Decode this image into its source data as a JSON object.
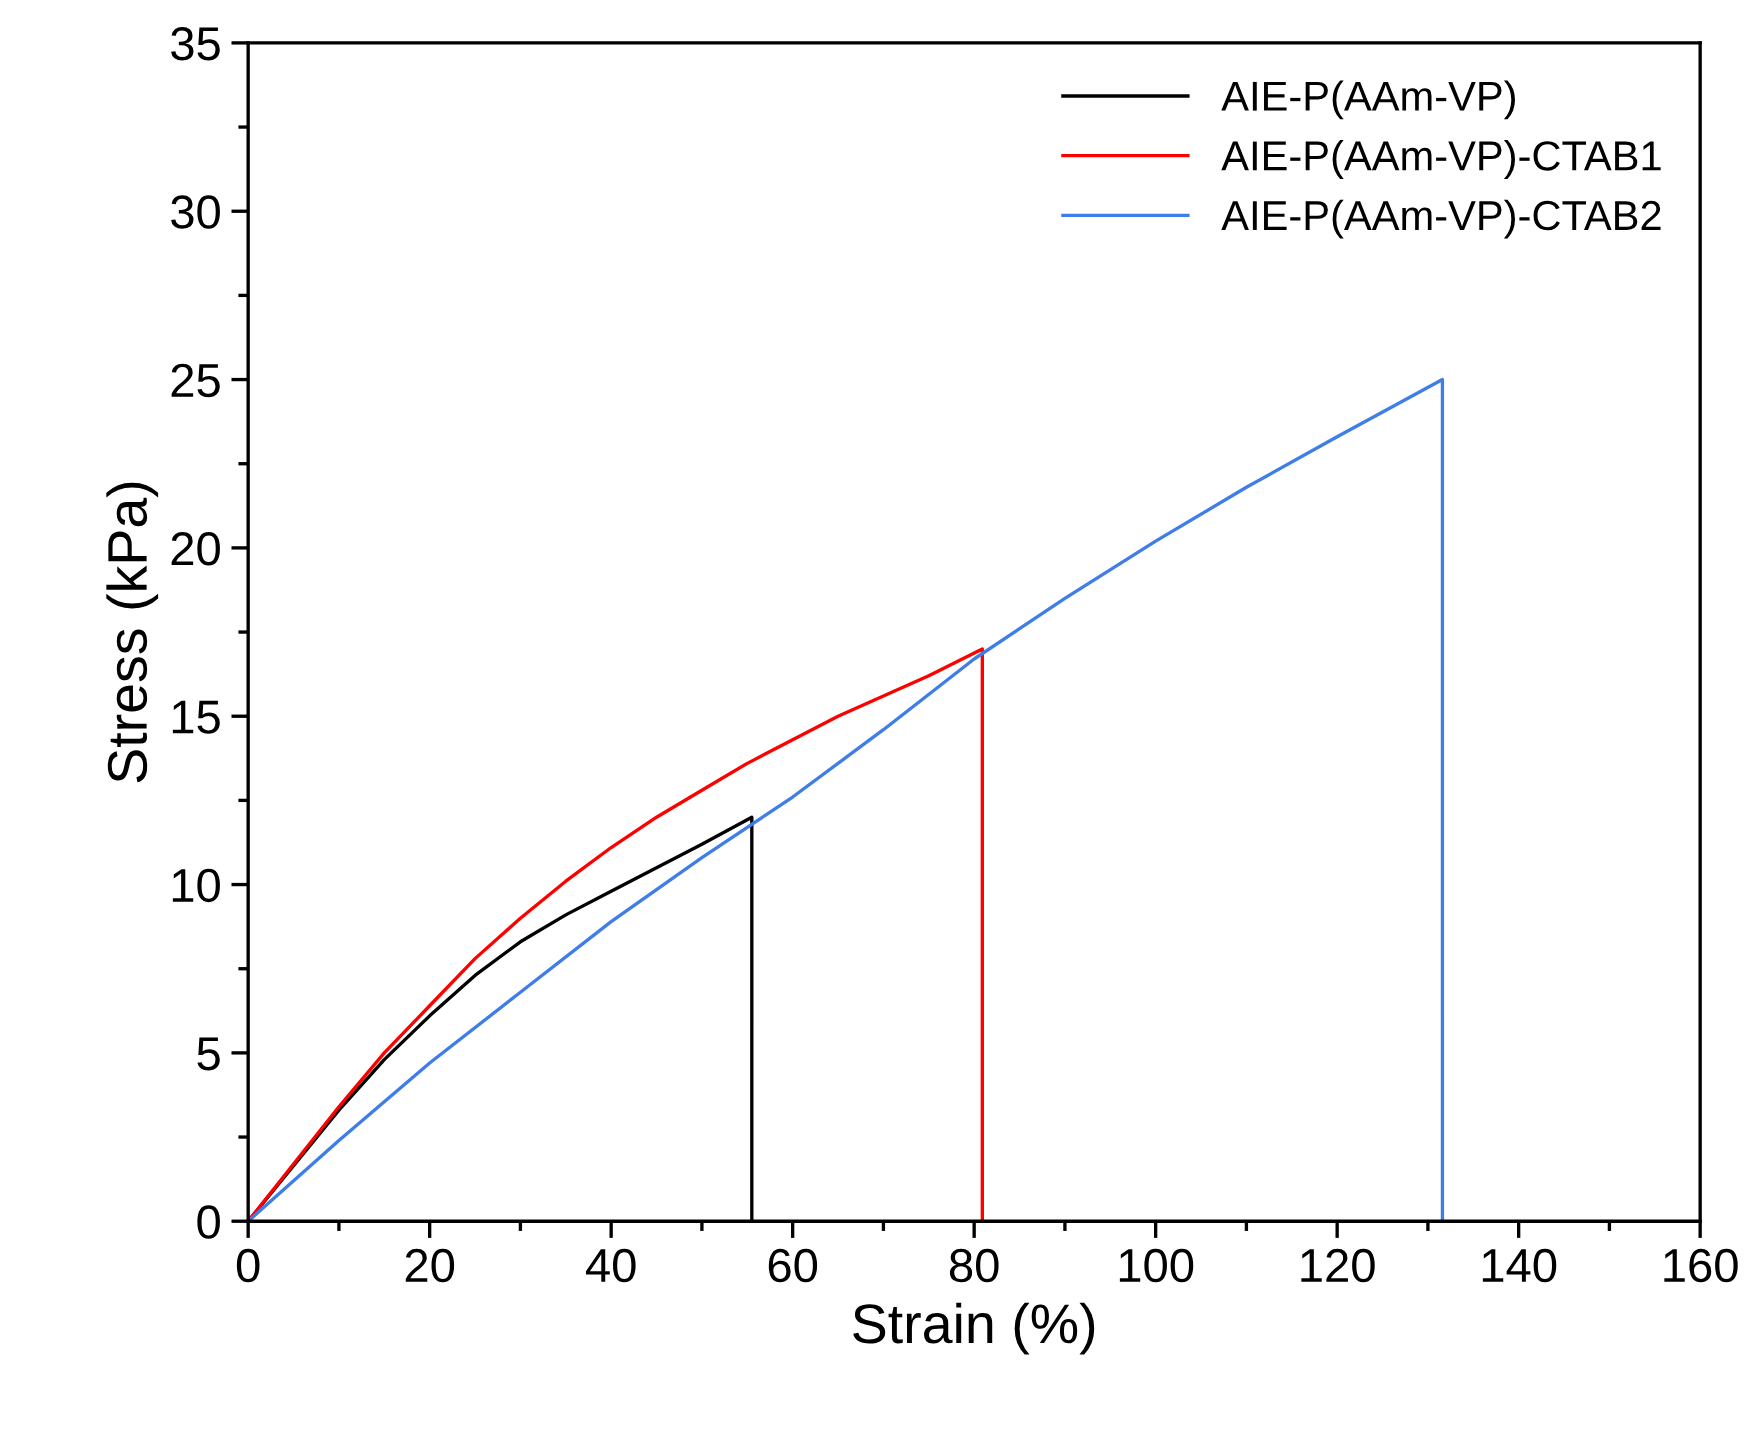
{
  "chart_data": {
    "type": "line",
    "xlabel": "Strain (%)",
    "ylabel": "Stress (kPa)",
    "xlim": [
      0,
      160
    ],
    "ylim": [
      0,
      35
    ],
    "xticks": [
      0,
      20,
      40,
      60,
      80,
      100,
      120,
      140,
      160
    ],
    "yticks": [
      0,
      5,
      10,
      15,
      20,
      25,
      30,
      35
    ],
    "legend": "top right",
    "grid": false,
    "marker": "none",
    "line_style": "solid",
    "series": [
      {
        "name": "AIE-P(AAm-VP)",
        "color": "#000000",
        "x": [
          0,
          10,
          15,
          20,
          25,
          30,
          35,
          40,
          45,
          50,
          55.5,
          55.5
        ],
        "values": [
          0,
          3.3,
          4.8,
          6.1,
          7.3,
          8.3,
          9.1,
          9.8,
          10.5,
          11.2,
          12.0,
          0
        ]
      },
      {
        "name": "AIE-P(AAm-VP)-CTAB1",
        "color": "#ff0000",
        "x": [
          0,
          5,
          10,
          15,
          20,
          25,
          30,
          35,
          40,
          45,
          50,
          55,
          60,
          65,
          70,
          75,
          80.9,
          80.9
        ],
        "values": [
          0,
          1.7,
          3.4,
          5.0,
          6.4,
          7.8,
          9.0,
          10.1,
          11.1,
          12.0,
          12.8,
          13.6,
          14.3,
          15.0,
          15.6,
          16.2,
          17.0,
          0
        ]
      },
      {
        "name": "AIE-P(AAm-VP)-CTAB2",
        "color": "#3f7ee8",
        "x": [
          0,
          10,
          20,
          30,
          40,
          50,
          60,
          70,
          80,
          90,
          100,
          110,
          120,
          131.6,
          131.6
        ],
        "values": [
          0,
          2.4,
          4.7,
          6.8,
          8.9,
          10.8,
          12.6,
          14.6,
          16.7,
          18.5,
          20.2,
          21.8,
          23.3,
          25.0,
          0
        ]
      }
    ]
  }
}
